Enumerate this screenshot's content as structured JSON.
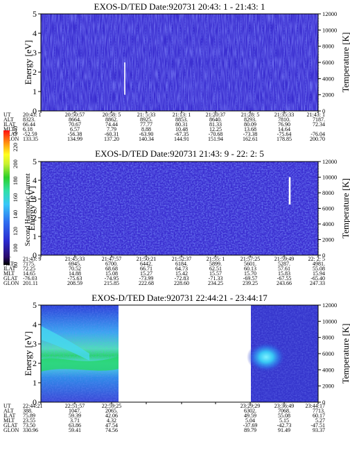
{
  "colorbar": {
    "title": "Second Harmonic Current",
    "ticks": [
      "80",
      "100",
      "120",
      "140",
      "160",
      "180",
      "200",
      "220",
      "240"
    ]
  },
  "panels": [
    {
      "title": "EXOS-D/TED    Date:920731  20:43: 1 - 21:43: 1",
      "ylabel": "Energy [eV]",
      "y2label": "Temperature [K]",
      "yticks": [
        "0",
        "1",
        "2",
        "3",
        "4",
        "5"
      ],
      "y2ticks": [
        "0",
        "2000",
        "4000",
        "6000",
        "8000",
        "10000",
        "12000"
      ],
      "orbit_rows": [
        {
          "label": "UT",
          "values": [
            "20:43: 1",
            "20:50:57",
            "20:58: 5",
            "21: 5:33",
            "21:13: 1",
            "21:20:37",
            "21:28: 5",
            "21:35:33",
            "21:43: 1"
          ]
        },
        {
          "label": "ALT",
          "values": [
            "8323.",
            "8664.",
            "8862.",
            "8925.",
            "8853.",
            "8640.",
            "8293.",
            "7810.",
            "7187."
          ]
        },
        {
          "label": "ILAT",
          "values": [
            "66.44",
            "70.67",
            "74.44",
            "77.77",
            "80.31",
            "81.33",
            "80.09",
            "76.90",
            "72.34"
          ]
        },
        {
          "label": "MLT",
          "values": [
            "6.18",
            "6.57",
            "7.79",
            "8.88",
            "10.48",
            "12.25",
            "13.68",
            "14.64",
            ""
          ]
        },
        {
          "label": "GLAT",
          "values": [
            "-52.59",
            "-56.38",
            "-60.31",
            "-63.90",
            "-67.35",
            "-70.68",
            "-73.38",
            "-75.64",
            "-76.04"
          ]
        },
        {
          "label": "GLON",
          "values": [
            "133.35",
            "134.99",
            "137.20",
            "140.34",
            "144.91",
            "151.94",
            "162.61",
            "178.85",
            "200.70"
          ]
        }
      ]
    },
    {
      "title": "EXOS-D/TED    Date:920731  21:43: 9 - 22: 2: 5",
      "ylabel": "Energy [eV]",
      "y2label": "Temperature [K]",
      "yticks": [
        "0",
        "1",
        "2",
        "3",
        "4",
        "5"
      ],
      "y2ticks": [
        "0",
        "2000",
        "4000",
        "6000",
        "8000",
        "10000",
        "12000"
      ],
      "orbit_rows": [
        {
          "label": "UT",
          "values": [
            "21:43: 9",
            "21:45:33",
            "21:47:57",
            "21:50:21",
            "21:52:37",
            "21:55: 1",
            "21:57:25",
            "21:59:49",
            "22: 2: 5"
          ]
        },
        {
          "label": "ALT",
          "values": [
            "7175.",
            "6945.",
            "6700.",
            "6442.",
            "6184.",
            "5899.",
            "5601.",
            "5287.",
            "4981."
          ]
        },
        {
          "label": "ILAT",
          "values": [
            "72.25",
            "70.52",
            "68.68",
            "66.71",
            "64.73",
            "62.51",
            "60.13",
            "57.61",
            "55.08"
          ]
        },
        {
          "label": "MLT",
          "values": [
            "14.65",
            "14.88",
            "15.08",
            "15.27",
            "15.42",
            "15.57",
            "15.70",
            "15.83",
            "15.94"
          ]
        },
        {
          "label": "GLAT",
          "values": [
            "-76.03",
            "-75.63",
            "-74.95",
            "-73.99",
            "-72.83",
            "-71.33",
            "-69.57",
            "-67.55",
            "-65.40"
          ]
        },
        {
          "label": "GLON",
          "values": [
            "201.11",
            "208.59",
            "215.85",
            "222.68",
            "228.60",
            "234.25",
            "239.25",
            "243.66",
            "247.33"
          ]
        }
      ]
    },
    {
      "title": "EXOS-D/TED    Date:920731  22:44:21 - 23:44:17",
      "ylabel": "Energy [eV]",
      "y2label": "Temperature [K]",
      "yticks": [
        "0",
        "1",
        "2",
        "3",
        "4",
        "5"
      ],
      "y2ticks": [
        "0",
        "2000",
        "4000",
        "6000",
        "8000",
        "10000",
        "12000"
      ],
      "orbit_rows": [
        {
          "label": "UT",
          "values": [
            "22:44:21",
            "22:51:57",
            "22:59:25",
            "",
            "",
            "",
            "23:29:29",
            "23:36:49",
            "23:44:17"
          ]
        },
        {
          "label": "ALT",
          "values": [
            "388.",
            "1047.",
            "2065.",
            "",
            "",
            "",
            "6302.",
            "7068.",
            "7713."
          ]
        },
        {
          "label": "ILAT",
          "values": [
            "75.89",
            "59.39",
            "42.06",
            "",
            "",
            "",
            "49.59",
            "55.08",
            "60.17"
          ]
        },
        {
          "label": "MLT",
          "values": [
            "23.55",
            "3.71",
            "4.32",
            "",
            "",
            "",
            "5.04",
            "5.15",
            "5.27"
          ]
        },
        {
          "label": "GLAT",
          "values": [
            "73.50",
            "63.86",
            "47.54",
            "",
            "",
            "",
            "-37.69",
            "-42.73",
            "-47.51"
          ]
        },
        {
          "label": "GLON",
          "values": [
            "330.96",
            "59.41",
            "74.56",
            "",
            "",
            "",
            "89.79",
            "91.49",
            "93.37"
          ]
        }
      ]
    }
  ],
  "chart_data": [
    {
      "type": "heatmap",
      "title": "EXOS-D/TED    Date:920731  20:43: 1 - 21:43: 1",
      "xlabel": "UT",
      "ylabel": "Energy [eV]",
      "y2label": "Temperature [K]",
      "ylim": [
        0,
        5
      ],
      "y2lim": [
        0,
        12000
      ],
      "x": [
        "20:43: 1",
        "20:50:57",
        "20:58: 5",
        "21: 5:33",
        "21:13: 1",
        "21:20:37",
        "21:28: 5",
        "21:35:33",
        "21:43: 1"
      ],
      "colorbar": {
        "label": "Second Harmonic Current",
        "range": [
          80,
          240
        ]
      },
      "dominant_level": 120,
      "temperature_spikes": [
        {
          "x": "21:00",
          "y2": [
            2000,
            6000
          ]
        }
      ]
    },
    {
      "type": "heatmap",
      "title": "EXOS-D/TED    Date:920731  21:43: 9 - 22: 2: 5",
      "xlabel": "UT",
      "ylabel": "Energy [eV]",
      "y2label": "Temperature [K]",
      "ylim": [
        0,
        5
      ],
      "y2lim": [
        0,
        12000
      ],
      "x": [
        "21:43: 9",
        "21:45:33",
        "21:47:57",
        "21:50:21",
        "21:52:37",
        "21:55: 1",
        "21:57:25",
        "21:59:49",
        "22: 2: 5"
      ],
      "colorbar": {
        "label": "Second Harmonic Current",
        "range": [
          80,
          240
        ]
      },
      "dominant_level": 120,
      "temperature_spikes": [
        {
          "x": "21:59:45",
          "y2": [
            6500,
            10000
          ]
        }
      ]
    },
    {
      "type": "heatmap",
      "title": "EXOS-D/TED    Date:920731  22:44:21 - 23:44:17",
      "xlabel": "UT",
      "ylabel": "Energy [eV]",
      "y2label": "Temperature [K]",
      "ylim": [
        0,
        5
      ],
      "y2lim": [
        0,
        12000
      ],
      "x": [
        "22:44:21",
        "22:51:57",
        "22:59:25",
        "23:29:29",
        "23:36:49",
        "23:44:17"
      ],
      "data_gap": [
        "23:00",
        "23:29"
      ],
      "colorbar": {
        "label": "Second Harmonic Current",
        "range": [
          80,
          240
        ]
      },
      "enhancement_band_eV": [
        2.0,
        2.6
      ]
    }
  ]
}
